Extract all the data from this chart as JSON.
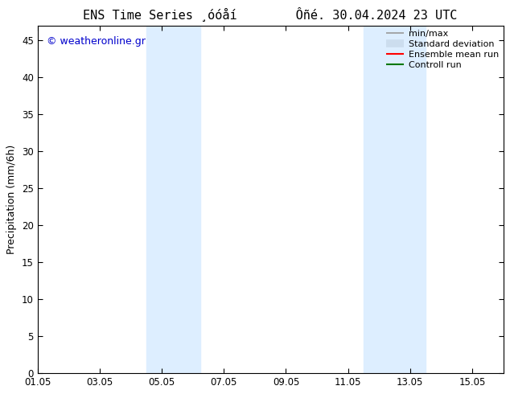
{
  "title": "ENS Time Series ¸óóåí        Ôñé. 30.04.2024 23 UTC",
  "ylabel": "Precipitation (mm/6h)",
  "ylim": [
    0,
    47
  ],
  "yticks": [
    0,
    5,
    10,
    15,
    20,
    25,
    30,
    35,
    40,
    45
  ],
  "xlim": [
    0,
    15
  ],
  "x_tick_positions": [
    0,
    2,
    4,
    6,
    8,
    10,
    12,
    14
  ],
  "x_tick_labels": [
    "01.05",
    "03.05",
    "05.05",
    "07.05",
    "09.05",
    "11.05",
    "13.05",
    "15.05"
  ],
  "shaded_regions": [
    {
      "x_start_days": 3.5,
      "x_end_days": 5.25
    },
    {
      "x_start_days": 10.5,
      "x_end_days": 12.5
    }
  ],
  "shade_color": "#ddeeff",
  "background_color": "#ffffff",
  "watermark_text": "© weatheronline.gr",
  "watermark_color": "#0000cc",
  "legend_entries": [
    {
      "label": "min/max",
      "color": "#999999",
      "lw": 1.2,
      "type": "line"
    },
    {
      "label": "Standard deviation",
      "color": "#ccddee",
      "lw": 7,
      "type": "line"
    },
    {
      "label": "Ensemble mean run",
      "color": "#ff0000",
      "lw": 1.5,
      "type": "line"
    },
    {
      "label": "Controll run",
      "color": "#007700",
      "lw": 1.5,
      "type": "line"
    }
  ],
  "title_fontsize": 11,
  "tick_fontsize": 8.5,
  "ylabel_fontsize": 9,
  "legend_fontsize": 8,
  "watermark_fontsize": 9
}
